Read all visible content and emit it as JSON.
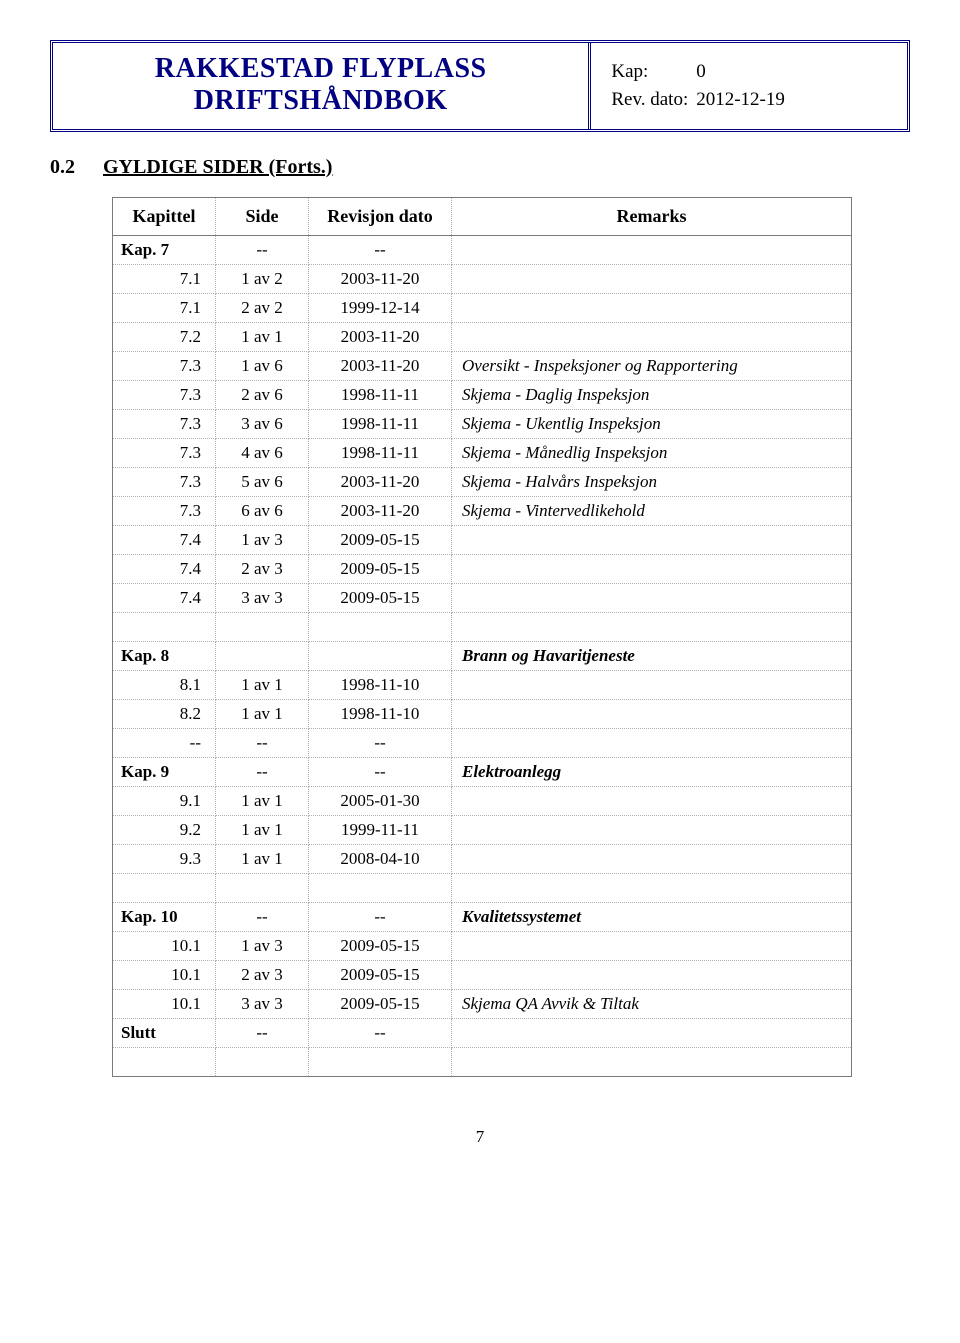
{
  "header": {
    "title_line1": "RAKKESTAD FLYPLASS",
    "title_line2": "DRIFTSHÅNDBOK",
    "kap_label": "Kap:",
    "kap_value": "0",
    "rev_label": "Rev. dato:",
    "rev_value": "2012-12-19"
  },
  "section": {
    "number": "0.2",
    "title": "GYLDIGE SIDER  (Forts.)"
  },
  "columns": {
    "kapittel": "Kapittel",
    "side": "Side",
    "dato": "Revisjon dato",
    "remarks": "Remarks"
  },
  "rows1": [
    {
      "kap": "Kap. 7",
      "side": "--",
      "dato": "--",
      "rem": "",
      "kap_bold": true
    },
    {
      "kap": "7.1",
      "side": "1 av 2",
      "dato": "2003-11-20",
      "rem": ""
    },
    {
      "kap": "7.1",
      "side": "2 av 2",
      "dato": "1999-12-14",
      "rem": ""
    },
    {
      "kap": "7.2",
      "side": "1 av 1",
      "dato": "2003-11-20",
      "rem": ""
    },
    {
      "kap": "7.3",
      "side": "1 av 6",
      "dato": "2003-11-20",
      "rem": "Oversikt - Inspeksjoner og Rapportering"
    },
    {
      "kap": "7.3",
      "side": "2 av 6",
      "dato": "1998-11-11",
      "rem": "Skjema - Daglig Inspeksjon"
    },
    {
      "kap": "7.3",
      "side": "3 av 6",
      "dato": "1998-11-11",
      "rem": "Skjema - Ukentlig Inspeksjon"
    },
    {
      "kap": "7.3",
      "side": "4 av 6",
      "dato": "1998-11-11",
      "rem": "Skjema - Månedlig Inspeksjon"
    },
    {
      "kap": "7.3",
      "side": "5 av 6",
      "dato": "2003-11-20",
      "rem": "Skjema - Halvårs Inspeksjon"
    },
    {
      "kap": "7.3",
      "side": "6 av 6",
      "dato": "2003-11-20",
      "rem": "Skjema - Vintervedlikehold"
    },
    {
      "kap": "7.4",
      "side": "1 av 3",
      "dato": "2009-05-15",
      "rem": ""
    },
    {
      "kap": "7.4",
      "side": "2 av 3",
      "dato": "2009-05-15",
      "rem": ""
    },
    {
      "kap": "7.4",
      "side": "3 av 3",
      "dato": "2009-05-15",
      "rem": ""
    }
  ],
  "rows2": [
    {
      "kap": "Kap. 8",
      "side": "",
      "dato": "",
      "rem": "Brann og Havaritjeneste",
      "kap_bold": true,
      "rem_bold": true
    },
    {
      "kap": "8.1",
      "side": "1 av 1",
      "dato": "1998-11-10",
      "rem": ""
    },
    {
      "kap": "8.2",
      "side": "1 av 1",
      "dato": "1998-11-10",
      "rem": ""
    },
    {
      "kap": "--",
      "side": "--",
      "dato": "--",
      "rem": ""
    },
    {
      "kap": "Kap. 9",
      "side": "--",
      "dato": "--",
      "rem": "Elektroanlegg",
      "kap_bold": true,
      "rem_bold": true
    },
    {
      "kap": "9.1",
      "side": "1 av 1",
      "dato": "2005-01-30",
      "rem": ""
    },
    {
      "kap": "9.2",
      "side": "1 av 1",
      "dato": "1999-11-11",
      "rem": ""
    },
    {
      "kap": "9.3",
      "side": "1 av 1",
      "dato": "2008-04-10",
      "rem": ""
    }
  ],
  "rows3": [
    {
      "kap": "Kap. 10",
      "side": "--",
      "dato": "--",
      "rem": "Kvalitetssystemet",
      "kap_bold": true,
      "rem_bold": true
    },
    {
      "kap": "10.1",
      "side": "1 av 3",
      "dato": "2009-05-15",
      "rem": ""
    },
    {
      "kap": "10.1",
      "side": "2 av 3",
      "dato": "2009-05-15",
      "rem": ""
    },
    {
      "kap": "10.1",
      "side": "3 av 3",
      "dato": "2009-05-15",
      "rem": "Skjema QA Avvik & Tiltak"
    },
    {
      "kap": "Slutt",
      "side": "--",
      "dato": "--",
      "rem": "",
      "kap_bold": true
    }
  ],
  "page_number": "7"
}
